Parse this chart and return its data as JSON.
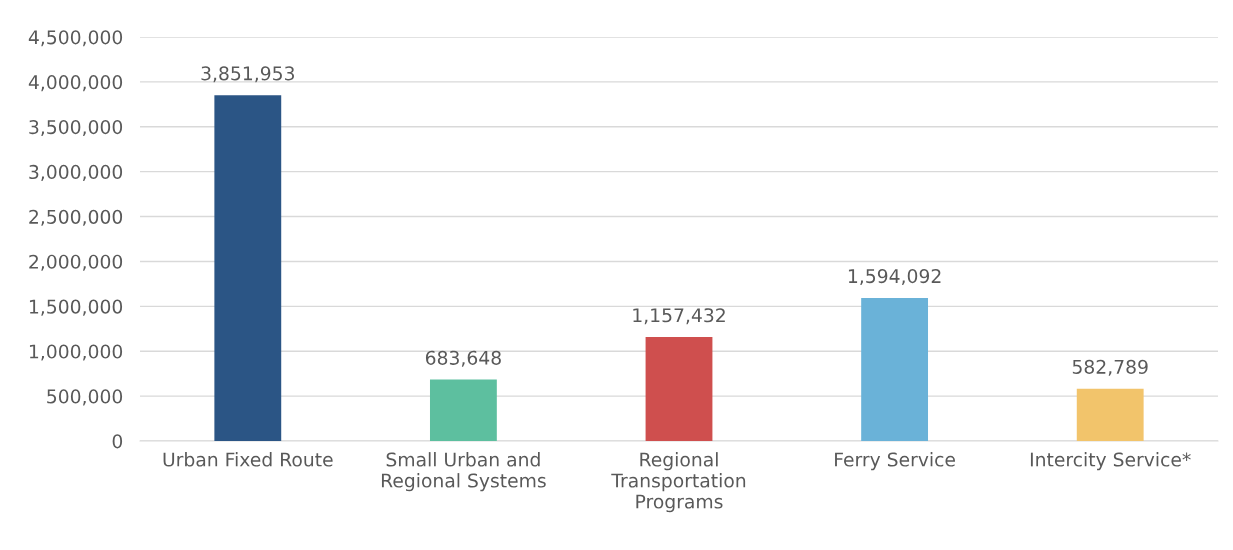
{
  "chart_data": {
    "type": "bar",
    "categories": [
      "Urban Fixed Route",
      "Small Urban and\nRegional Systems",
      "Regional\nTransportation\nPrograms",
      "Ferry Service",
      "Intercity Service*"
    ],
    "values": [
      3851953,
      683648,
      1157432,
      1594092,
      582789
    ],
    "colors": [
      "#2b5585",
      "#5dbf9f",
      "#cf4f4e",
      "#6ab2d8",
      "#f2c46b"
    ],
    "ylim": [
      0,
      4500000
    ],
    "yticks": [
      {
        "value": 0,
        "label": "0"
      },
      {
        "value": 500000,
        "label": "500,000"
      },
      {
        "value": 1000000,
        "label": "1,000,000"
      },
      {
        "value": 1500000,
        "label": "1,500,000"
      },
      {
        "value": 2000000,
        "label": "2,000,000"
      },
      {
        "value": 2500000,
        "label": "2,500,000"
      },
      {
        "value": 3000000,
        "label": "3,000,000"
      },
      {
        "value": 3500000,
        "label": "3,500,000"
      },
      {
        "value": 4000000,
        "label": "4,000,000"
      },
      {
        "value": 4500000,
        "label": "4,500,000"
      }
    ],
    "grid": "y",
    "value_labels": [
      "3,851,953",
      "683,648",
      "1,157,432",
      "1,594,092",
      "582,789"
    ]
  }
}
